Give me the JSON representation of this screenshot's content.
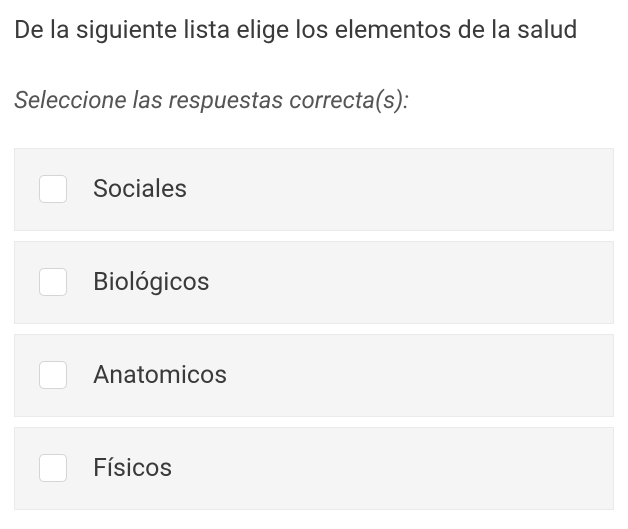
{
  "question": {
    "text": "De la siguiente lista elige los elementos de la salud",
    "instruction": "Seleccione las respuestas correcta(s):"
  },
  "options": [
    {
      "label": "Sociales"
    },
    {
      "label": "Biológicos"
    },
    {
      "label": "Anatomicos"
    },
    {
      "label": "Físicos"
    }
  ],
  "colors": {
    "background": "#ffffff",
    "option_bg": "#f5f5f5",
    "option_border": "#eaeaea",
    "checkbox_bg": "#ffffff",
    "checkbox_border": "#d5d5d5",
    "text_primary": "#3a3a3a",
    "text_secondary": "#555"
  }
}
